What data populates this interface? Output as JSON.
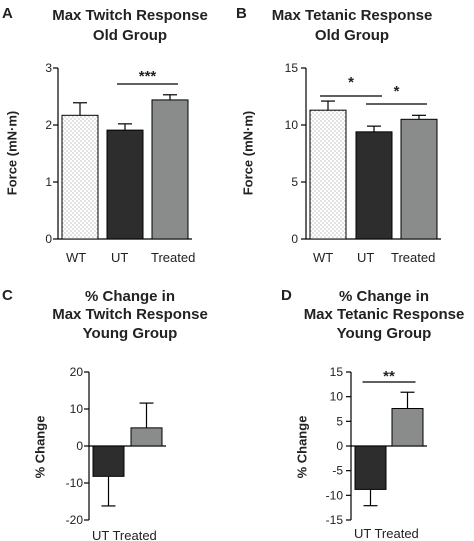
{
  "colors": {
    "wt_pattern": "#9a9a9a",
    "ut": "#2d2d2d",
    "treated": "#8a8c8c"
  },
  "chart_data": [
    {
      "label": "A",
      "type": "bar",
      "title_lines": [
        "Max Twitch Response",
        "Old Group"
      ],
      "ylabel": "Force (mN·m)",
      "ylim": [
        0,
        3
      ],
      "yticks": [
        0,
        1,
        2,
        3
      ],
      "categories": [
        "WT",
        "UT",
        "Treated"
      ],
      "values": [
        2.17,
        1.91,
        2.44
      ],
      "errors": [
        0.22,
        0.11,
        0.09
      ],
      "styles": [
        "dots",
        "ut",
        "treated"
      ],
      "significance": [
        {
          "from": 1,
          "to": 2,
          "stars": "***"
        }
      ]
    },
    {
      "label": "B",
      "type": "bar",
      "title_lines": [
        "Max Tetanic Response",
        "Old Group"
      ],
      "ylabel": "Force (mN·m)",
      "ylim": [
        0,
        15
      ],
      "yticks": [
        0,
        5,
        10,
        15
      ],
      "categories": [
        "WT",
        "UT",
        "Treated"
      ],
      "values": [
        11.3,
        9.4,
        10.5
      ],
      "errors": [
        0.8,
        0.5,
        0.35
      ],
      "styles": [
        "dots",
        "ut",
        "treated"
      ],
      "significance": [
        {
          "from": 0,
          "to": 1,
          "stars": "*"
        },
        {
          "from": 1,
          "to": 2,
          "stars": "*"
        }
      ]
    },
    {
      "label": "C",
      "type": "bar",
      "title_lines": [
        "% Change in",
        "Max Twitch Response",
        "Young Group"
      ],
      "ylabel": "% Change",
      "ylim": [
        -20,
        20
      ],
      "yticks": [
        -20,
        -10,
        0,
        10,
        20
      ],
      "categories": [
        "UT",
        "Treated"
      ],
      "category_label": "UT Treated",
      "values": [
        -8.2,
        4.9
      ],
      "errors": [
        8.0,
        6.7
      ],
      "styles": [
        "ut",
        "treated"
      ],
      "significance": []
    },
    {
      "label": "D",
      "type": "bar",
      "title_lines": [
        "% Change in",
        "Max Tetanic Response",
        "Young Group"
      ],
      "ylabel": "% Change",
      "ylim": [
        -15,
        15
      ],
      "yticks": [
        -15,
        -10,
        -5,
        0,
        5,
        10,
        15
      ],
      "categories": [
        "UT",
        "Treated"
      ],
      "category_label": "UT Treated",
      "values": [
        -8.8,
        7.6
      ],
      "errors": [
        3.3,
        3.3
      ],
      "styles": [
        "ut",
        "treated"
      ],
      "significance": [
        {
          "from": 0,
          "to": 1,
          "stars": "**"
        }
      ]
    }
  ]
}
